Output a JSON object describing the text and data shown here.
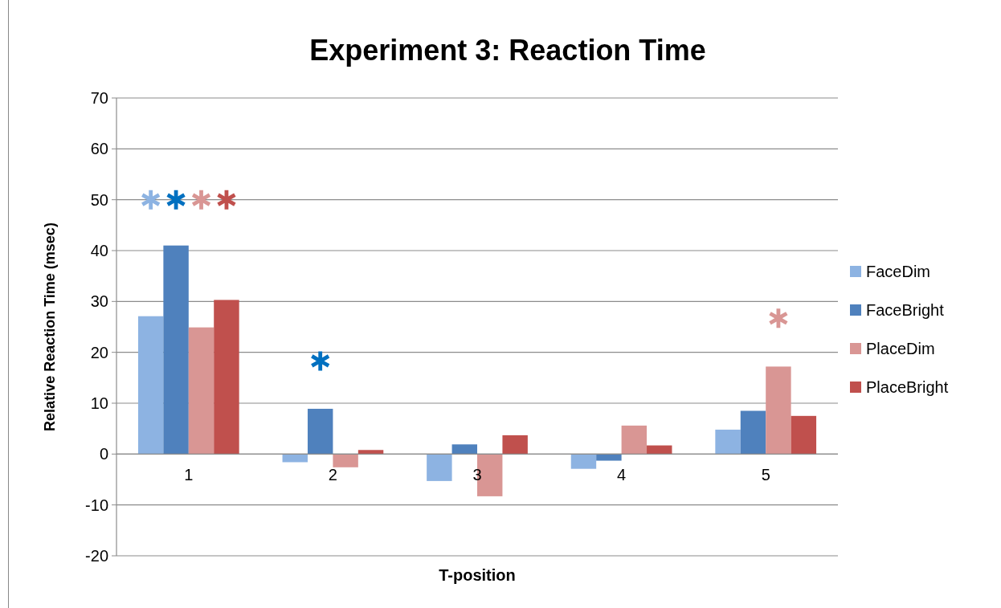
{
  "chart_data": {
    "type": "bar",
    "title": "Experiment 3: Reaction Time",
    "xlabel": "T-position",
    "ylabel": "Relative Reaction Time (msec)",
    "categories": [
      "1",
      "2",
      "3",
      "4",
      "5"
    ],
    "series": [
      {
        "name": "FaceDim",
        "color": "#8db3e2",
        "values": [
          27.1,
          -1.6,
          -5.3,
          -2.9,
          4.8
        ]
      },
      {
        "name": "FaceBright",
        "color": "#4f81bd",
        "values": [
          41.0,
          8.9,
          1.9,
          -1.3,
          8.5
        ]
      },
      {
        "name": "PlaceDim",
        "color": "#d99694",
        "values": [
          24.9,
          -2.6,
          -8.3,
          5.6,
          17.2
        ]
      },
      {
        "name": "PlaceBright",
        "color": "#c0504d",
        "values": [
          30.3,
          0.8,
          3.7,
          1.7,
          7.5
        ]
      },
      {
        "type": "scatter",
        "color": "#8db3e2",
        "values": [
          50,
          null,
          null,
          null,
          null
        ]
      },
      {
        "type": "scatter",
        "color": "#0070c0",
        "values": [
          50,
          18.3,
          null,
          null,
          null
        ]
      },
      {
        "type": "scatter",
        "color": "#d99694",
        "values": [
          50,
          null,
          null,
          null,
          26.7
        ]
      },
      {
        "type": "scatter",
        "color": "#c0504d",
        "values": [
          50,
          null,
          null,
          null,
          null
        ]
      }
    ],
    "ylim": [
      -20,
      70
    ],
    "yticks": [
      -20,
      -10,
      0,
      10,
      20,
      30,
      40,
      50,
      60,
      70
    ],
    "grid": "y",
    "legend": "right",
    "marker": "star"
  }
}
